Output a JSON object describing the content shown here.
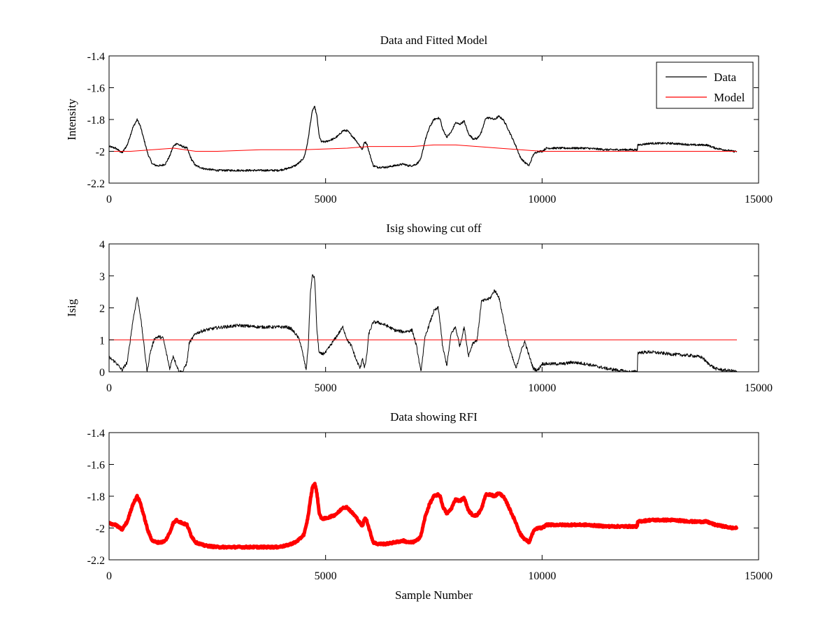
{
  "chart_data": [
    {
      "type": "line",
      "title": "Data and Fitted Model",
      "xlabel": "",
      "ylabel": "Intensity",
      "xlim": [
        0,
        15000
      ],
      "ylim": [
        -2.2,
        -1.4
      ],
      "y_reversed": true,
      "xticks": [
        0,
        5000,
        10000,
        15000
      ],
      "yticks": [
        -1.4,
        -1.6,
        -1.8,
        -2,
        -2.2
      ],
      "xtick_labels": [
        "0",
        "5000",
        "10000",
        "15000"
      ],
      "ytick_labels": [
        "-1.4",
        "-1.6",
        "-1.8",
        "-2",
        "-2.2"
      ],
      "legend": {
        "position": "top-right",
        "entries": [
          "Data",
          "Model"
        ]
      },
      "grid": false,
      "series": [
        {
          "name": "Data",
          "color": "#000000",
          "width": 1.2,
          "noise": 0.006,
          "x": [
            0,
            150,
            300,
            420,
            550,
            650,
            720,
            800,
            900,
            1000,
            1100,
            1200,
            1300,
            1400,
            1480,
            1560,
            1620,
            1700,
            1800,
            1900,
            2000,
            2200,
            2500,
            3000,
            3500,
            3900,
            4100,
            4200,
            4300,
            4400,
            4500,
            4550,
            4600,
            4650,
            4700,
            4750,
            4800,
            4850,
            4900,
            5000,
            5200,
            5300,
            5400,
            5500,
            5600,
            5700,
            5800,
            5850,
            5900,
            5950,
            6000,
            6100,
            6200,
            6400,
            6600,
            6800,
            6900,
            7000,
            7100,
            7200,
            7300,
            7400,
            7500,
            7600,
            7650,
            7700,
            7800,
            7900,
            8000,
            8100,
            8200,
            8300,
            8400,
            8500,
            8600,
            8700,
            8800,
            8900,
            9000,
            9100,
            9200,
            9300,
            9400,
            9500,
            9600,
            9700,
            9800,
            9900,
            10000,
            10100,
            10300,
            10500,
            10800,
            11000,
            11500,
            12000,
            12200,
            12210,
            12500,
            13000,
            13500,
            13700,
            13800,
            13900,
            14000,
            14200,
            14400,
            14500
          ],
          "y": [
            -1.97,
            -1.98,
            -2.01,
            -1.96,
            -1.85,
            -1.8,
            -1.84,
            -1.92,
            -2.02,
            -2.08,
            -2.09,
            -2.09,
            -2.08,
            -2.03,
            -1.97,
            -1.95,
            -1.96,
            -1.97,
            -1.98,
            -2.05,
            -2.09,
            -2.11,
            -2.12,
            -2.12,
            -2.12,
            -2.12,
            -2.11,
            -2.1,
            -2.09,
            -2.07,
            -2.04,
            -1.99,
            -1.92,
            -1.82,
            -1.74,
            -1.72,
            -1.78,
            -1.9,
            -1.94,
            -1.94,
            -1.92,
            -1.9,
            -1.87,
            -1.87,
            -1.9,
            -1.93,
            -1.97,
            -1.99,
            -1.94,
            -1.95,
            -2.0,
            -2.09,
            -2.1,
            -2.1,
            -2.09,
            -2.08,
            -2.09,
            -2.09,
            -2.08,
            -2.05,
            -1.93,
            -1.85,
            -1.8,
            -1.79,
            -1.8,
            -1.86,
            -1.91,
            -1.88,
            -1.82,
            -1.83,
            -1.81,
            -1.89,
            -1.92,
            -1.92,
            -1.88,
            -1.79,
            -1.79,
            -1.8,
            -1.78,
            -1.8,
            -1.85,
            -1.91,
            -1.97,
            -2.04,
            -2.07,
            -2.09,
            -2.02,
            -2.0,
            -2.0,
            -1.98,
            -1.98,
            -1.98,
            -1.98,
            -1.98,
            -1.99,
            -1.99,
            -1.99,
            -1.96,
            -1.95,
            -1.95,
            -1.96,
            -1.96,
            -1.96,
            -1.97,
            -1.98,
            -1.99,
            -2.0,
            -2.0
          ]
        },
        {
          "name": "Model",
          "color": "#ff0000",
          "width": 1,
          "noise": 0,
          "x": [
            0,
            500,
            1000,
            1500,
            2000,
            2500,
            3000,
            3500,
            4000,
            4500,
            5000,
            5500,
            6000,
            6500,
            7000,
            7500,
            8000,
            8500,
            9000,
            9500,
            10000,
            10500,
            11000,
            11500,
            12000,
            12500,
            13000,
            13500,
            14000,
            14500
          ],
          "y": [
            -2.0,
            -2.0,
            -1.99,
            -1.98,
            -2.0,
            -2.0,
            -1.995,
            -1.99,
            -1.99,
            -1.99,
            -1.985,
            -1.98,
            -1.97,
            -1.97,
            -1.97,
            -1.96,
            -1.96,
            -1.97,
            -1.98,
            -1.99,
            -2.0,
            -2.0,
            -2.0,
            -2.0,
            -2.0,
            -2.0,
            -2.0,
            -2.0,
            -2.0,
            -2.0
          ]
        }
      ]
    },
    {
      "type": "line",
      "title": "Isig showing cut off",
      "xlabel": "",
      "ylabel": "Isig",
      "xlim": [
        0,
        15000
      ],
      "ylim": [
        0,
        4
      ],
      "y_reversed": false,
      "xticks": [
        0,
        5000,
        10000,
        15000
      ],
      "yticks": [
        0,
        1,
        2,
        3,
        4
      ],
      "xtick_labels": [
        "0",
        "5000",
        "10000",
        "15000"
      ],
      "ytick_labels": [
        "0",
        "1",
        "2",
        "3",
        "4"
      ],
      "grid": false,
      "series": [
        {
          "color": "#000000",
          "width": 1,
          "noise": 0.05,
          "floor": 0,
          "x": [
            0,
            150,
            300,
            420,
            550,
            650,
            720,
            800,
            880,
            950,
            1050,
            1150,
            1250,
            1320,
            1400,
            1480,
            1560,
            1620,
            1700,
            1800,
            1850,
            2000,
            2200,
            2500,
            3000,
            3500,
            3900,
            4100,
            4200,
            4300,
            4400,
            4500,
            4550,
            4600,
            4650,
            4700,
            4750,
            4800,
            4850,
            4900,
            5000,
            5200,
            5300,
            5400,
            5500,
            5600,
            5700,
            5800,
            5850,
            5900,
            5950,
            6000,
            6100,
            6200,
            6400,
            6600,
            6800,
            7000,
            7100,
            7200,
            7300,
            7400,
            7500,
            7600,
            7650,
            7700,
            7800,
            7900,
            8000,
            8100,
            8200,
            8300,
            8400,
            8500,
            8600,
            8700,
            8800,
            8900,
            9000,
            9100,
            9200,
            9300,
            9400,
            9500,
            9600,
            9700,
            9800,
            9900,
            10000,
            10200,
            10500,
            10700,
            11000,
            11500,
            12000,
            12200,
            12210,
            12500,
            13000,
            13500,
            13700,
            13800,
            13900,
            14000,
            14200,
            14400,
            14500
          ],
          "y": [
            0.45,
            0.3,
            0.05,
            0.3,
            1.6,
            2.35,
            1.8,
            0.9,
            0.0,
            0.6,
            1.05,
            1.1,
            1.05,
            0.6,
            0.1,
            0.5,
            0.2,
            0.0,
            0.0,
            0.3,
            0.9,
            1.2,
            1.3,
            1.38,
            1.45,
            1.4,
            1.4,
            1.4,
            1.35,
            1.2,
            1.0,
            0.4,
            0.05,
            0.8,
            2.5,
            3.05,
            2.9,
            1.3,
            0.6,
            0.55,
            0.6,
            1.0,
            1.2,
            1.4,
            1.0,
            0.8,
            0.4,
            0.1,
            0.45,
            0.1,
            0.5,
            1.2,
            1.55,
            1.55,
            1.45,
            1.3,
            1.25,
            1.3,
            0.8,
            0.0,
            1.1,
            1.5,
            1.9,
            2.0,
            1.5,
            0.8,
            0.2,
            1.2,
            1.4,
            0.8,
            1.4,
            0.5,
            0.9,
            1.0,
            2.2,
            2.25,
            2.3,
            2.55,
            2.35,
            1.7,
            1.0,
            0.5,
            0.1,
            0.6,
            0.95,
            0.5,
            0.1,
            0.05,
            0.25,
            0.25,
            0.25,
            0.3,
            0.25,
            0.1,
            0.0,
            0.0,
            0.6,
            0.62,
            0.55,
            0.5,
            0.45,
            0.3,
            0.2,
            0.1,
            0.05,
            0.03,
            0.0
          ]
        },
        {
          "color": "#ff0000",
          "width": 1,
          "noise": 0,
          "x": [
            0,
            14500
          ],
          "y": [
            1,
            1
          ]
        }
      ]
    },
    {
      "type": "line",
      "title": "Data showing RFI",
      "xlabel": "Sample Number",
      "ylabel": "",
      "xlim": [
        0,
        15000
      ],
      "ylim": [
        -2.2,
        -1.4
      ],
      "y_reversed": true,
      "xticks": [
        0,
        5000,
        10000,
        15000
      ],
      "yticks": [
        -1.4,
        -1.6,
        -1.8,
        -2,
        -2.2
      ],
      "xtick_labels": [
        "0",
        "5000",
        "10000",
        "15000"
      ],
      "ytick_labels": [
        "-1.4",
        "-1.6",
        "-1.8",
        "-2",
        "-2.2"
      ],
      "grid": false,
      "series": [
        {
          "color": "#ff0000",
          "width": 5,
          "noise": 0.006,
          "x": [
            0,
            150,
            300,
            420,
            550,
            650,
            720,
            800,
            900,
            1000,
            1100,
            1200,
            1300,
            1400,
            1480,
            1560,
            1620,
            1700,
            1800,
            1900,
            2000,
            2200,
            2500,
            3000,
            3500,
            3900,
            4100,
            4200,
            4300,
            4400,
            4500,
            4550,
            4600,
            4650,
            4700,
            4750,
            4800,
            4850,
            4900,
            5000,
            5200,
            5300,
            5400,
            5500,
            5600,
            5700,
            5800,
            5850,
            5900,
            5950,
            6000,
            6100,
            6200,
            6400,
            6600,
            6800,
            6900,
            7000,
            7100,
            7200,
            7300,
            7400,
            7500,
            7600,
            7650,
            7700,
            7800,
            7900,
            8000,
            8100,
            8200,
            8300,
            8400,
            8500,
            8600,
            8700,
            8800,
            8900,
            9000,
            9100,
            9200,
            9300,
            9400,
            9500,
            9600,
            9700,
            9800,
            9900,
            10000,
            10100,
            10300,
            10500,
            10800,
            11000,
            11500,
            12000,
            12200,
            12210,
            12500,
            13000,
            13500,
            13700,
            13800,
            13900,
            14000,
            14200,
            14400,
            14500
          ],
          "y": [
            -1.97,
            -1.98,
            -2.01,
            -1.96,
            -1.85,
            -1.8,
            -1.84,
            -1.92,
            -2.02,
            -2.08,
            -2.09,
            -2.09,
            -2.08,
            -2.03,
            -1.97,
            -1.95,
            -1.96,
            -1.97,
            -1.98,
            -2.05,
            -2.09,
            -2.11,
            -2.12,
            -2.12,
            -2.12,
            -2.12,
            -2.11,
            -2.1,
            -2.09,
            -2.07,
            -2.04,
            -1.99,
            -1.92,
            -1.82,
            -1.74,
            -1.72,
            -1.78,
            -1.9,
            -1.94,
            -1.94,
            -1.92,
            -1.9,
            -1.87,
            -1.87,
            -1.9,
            -1.93,
            -1.97,
            -1.99,
            -1.94,
            -1.95,
            -2.0,
            -2.09,
            -2.1,
            -2.1,
            -2.09,
            -2.08,
            -2.09,
            -2.09,
            -2.08,
            -2.05,
            -1.93,
            -1.85,
            -1.8,
            -1.79,
            -1.8,
            -1.86,
            -1.91,
            -1.88,
            -1.82,
            -1.83,
            -1.81,
            -1.89,
            -1.92,
            -1.92,
            -1.88,
            -1.79,
            -1.79,
            -1.8,
            -1.78,
            -1.8,
            -1.85,
            -1.91,
            -1.97,
            -2.04,
            -2.07,
            -2.09,
            -2.02,
            -2.0,
            -2.0,
            -1.98,
            -1.98,
            -1.98,
            -1.98,
            -1.98,
            -1.99,
            -1.99,
            -1.99,
            -1.96,
            -1.95,
            -1.95,
            -1.96,
            -1.96,
            -1.96,
            -1.97,
            -1.98,
            -1.99,
            -2.0,
            -2.0
          ]
        }
      ]
    }
  ]
}
